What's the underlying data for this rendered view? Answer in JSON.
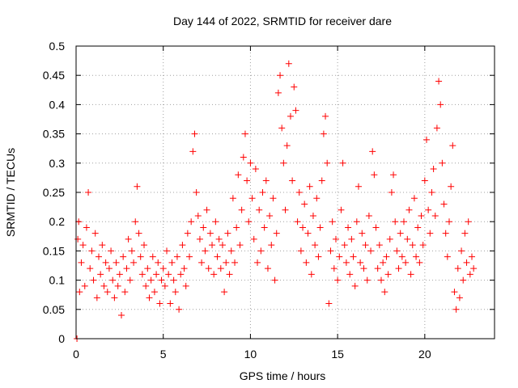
{
  "chart_data": {
    "type": "scatter",
    "title": "Day 144 of 2022, SRMTID for receiver dare",
    "xlabel": "GPS time / hours",
    "ylabel": "SRMTID / TECUs",
    "xlim": [
      0,
      24
    ],
    "ylim": [
      0,
      0.5
    ],
    "x_ticks": [
      "0",
      "5",
      "10",
      "15",
      "20"
    ],
    "y_ticks": [
      "0",
      "0.05",
      "0.1",
      "0.15",
      "0.2",
      "0.25",
      "0.3",
      "0.35",
      "0.4",
      "0.45",
      "0.5"
    ],
    "grid": true,
    "marker": "plus",
    "colors": {
      "series": "#ff0000",
      "grid": "#a0a0a0",
      "axis": "#000000"
    },
    "series": [
      {
        "name": "dare",
        "points": [
          [
            0.05,
            0.0
          ],
          [
            0.1,
            0.17
          ],
          [
            0.15,
            0.2
          ],
          [
            0.2,
            0.08
          ],
          [
            0.3,
            0.13
          ],
          [
            0.4,
            0.16
          ],
          [
            0.5,
            0.09
          ],
          [
            0.6,
            0.19
          ],
          [
            0.7,
            0.25
          ],
          [
            0.8,
            0.12
          ],
          [
            0.9,
            0.15
          ],
          [
            1.0,
            0.1
          ],
          [
            1.1,
            0.18
          ],
          [
            1.2,
            0.07
          ],
          [
            1.3,
            0.14
          ],
          [
            1.4,
            0.11
          ],
          [
            1.5,
            0.16
          ],
          [
            1.6,
            0.09
          ],
          [
            1.7,
            0.13
          ],
          [
            1.8,
            0.08
          ],
          [
            1.9,
            0.12
          ],
          [
            2.0,
            0.15
          ],
          [
            2.1,
            0.1
          ],
          [
            2.2,
            0.07
          ],
          [
            2.3,
            0.13
          ],
          [
            2.4,
            0.09
          ],
          [
            2.5,
            0.11
          ],
          [
            2.6,
            0.04
          ],
          [
            2.7,
            0.14
          ],
          [
            2.8,
            0.08
          ],
          [
            2.9,
            0.12
          ],
          [
            3.0,
            0.17
          ],
          [
            3.1,
            0.1
          ],
          [
            3.2,
            0.15
          ],
          [
            3.3,
            0.13
          ],
          [
            3.4,
            0.2
          ],
          [
            3.5,
            0.26
          ],
          [
            3.6,
            0.18
          ],
          [
            3.7,
            0.14
          ],
          [
            3.8,
            0.11
          ],
          [
            3.9,
            0.16
          ],
          [
            4.0,
            0.09
          ],
          [
            4.1,
            0.12
          ],
          [
            4.2,
            0.07
          ],
          [
            4.3,
            0.1
          ],
          [
            4.4,
            0.14
          ],
          [
            4.5,
            0.08
          ],
          [
            4.6,
            0.11
          ],
          [
            4.7,
            0.13
          ],
          [
            4.8,
            0.06
          ],
          [
            4.9,
            0.1
          ],
          [
            5.0,
            0.12
          ],
          [
            5.1,
            0.09
          ],
          [
            5.2,
            0.15
          ],
          [
            5.3,
            0.11
          ],
          [
            5.4,
            0.06
          ],
          [
            5.5,
            0.13
          ],
          [
            5.6,
            0.1
          ],
          [
            5.7,
            0.08
          ],
          [
            5.8,
            0.14
          ],
          [
            5.9,
            0.05
          ],
          [
            6.0,
            0.11
          ],
          [
            6.1,
            0.16
          ],
          [
            6.2,
            0.12
          ],
          [
            6.3,
            0.09
          ],
          [
            6.4,
            0.18
          ],
          [
            6.5,
            0.14
          ],
          [
            6.6,
            0.2
          ],
          [
            6.7,
            0.32
          ],
          [
            6.8,
            0.35
          ],
          [
            6.9,
            0.25
          ],
          [
            7.0,
            0.21
          ],
          [
            7.1,
            0.17
          ],
          [
            7.2,
            0.13
          ],
          [
            7.3,
            0.19
          ],
          [
            7.4,
            0.15
          ],
          [
            7.5,
            0.22
          ],
          [
            7.6,
            0.12
          ],
          [
            7.7,
            0.18
          ],
          [
            7.8,
            0.16
          ],
          [
            7.9,
            0.11
          ],
          [
            8.0,
            0.2
          ],
          [
            8.1,
            0.14
          ],
          [
            8.2,
            0.17
          ],
          [
            8.3,
            0.12
          ],
          [
            8.4,
            0.16
          ],
          [
            8.5,
            0.08
          ],
          [
            8.6,
            0.13
          ],
          [
            8.7,
            0.18
          ],
          [
            8.8,
            0.11
          ],
          [
            8.9,
            0.15
          ],
          [
            9.0,
            0.24
          ],
          [
            9.1,
            0.13
          ],
          [
            9.2,
            0.19
          ],
          [
            9.3,
            0.28
          ],
          [
            9.4,
            0.16
          ],
          [
            9.5,
            0.22
          ],
          [
            9.6,
            0.31
          ],
          [
            9.7,
            0.35
          ],
          [
            9.8,
            0.27
          ],
          [
            9.9,
            0.2
          ],
          [
            10.0,
            0.3
          ],
          [
            10.1,
            0.24
          ],
          [
            10.2,
            0.17
          ],
          [
            10.3,
            0.29
          ],
          [
            10.4,
            0.13
          ],
          [
            10.5,
            0.22
          ],
          [
            10.6,
            0.15
          ],
          [
            10.7,
            0.25
          ],
          [
            10.8,
            0.19
          ],
          [
            10.9,
            0.27
          ],
          [
            11.0,
            0.12
          ],
          [
            11.1,
            0.21
          ],
          [
            11.2,
            0.16
          ],
          [
            11.3,
            0.24
          ],
          [
            11.4,
            0.1
          ],
          [
            11.5,
            0.18
          ],
          [
            11.6,
            0.42
          ],
          [
            11.7,
            0.45
          ],
          [
            11.8,
            0.36
          ],
          [
            11.9,
            0.3
          ],
          [
            12.0,
            0.22
          ],
          [
            12.1,
            0.33
          ],
          [
            12.2,
            0.47
          ],
          [
            12.3,
            0.38
          ],
          [
            12.4,
            0.27
          ],
          [
            12.5,
            0.43
          ],
          [
            12.6,
            0.39
          ],
          [
            12.7,
            0.2
          ],
          [
            12.8,
            0.25
          ],
          [
            12.9,
            0.15
          ],
          [
            13.0,
            0.19
          ],
          [
            13.1,
            0.23
          ],
          [
            13.2,
            0.13
          ],
          [
            13.3,
            0.18
          ],
          [
            13.4,
            0.26
          ],
          [
            13.5,
            0.11
          ],
          [
            13.6,
            0.21
          ],
          [
            13.7,
            0.16
          ],
          [
            13.8,
            0.24
          ],
          [
            13.9,
            0.14
          ],
          [
            14.0,
            0.19
          ],
          [
            14.1,
            0.27
          ],
          [
            14.2,
            0.35
          ],
          [
            14.3,
            0.38
          ],
          [
            14.4,
            0.3
          ],
          [
            14.5,
            0.06
          ],
          [
            14.6,
            0.15
          ],
          [
            14.7,
            0.2
          ],
          [
            14.8,
            0.12
          ],
          [
            14.9,
            0.17
          ],
          [
            15.0,
            0.1
          ],
          [
            15.1,
            0.14
          ],
          [
            15.2,
            0.22
          ],
          [
            15.3,
            0.3
          ],
          [
            15.4,
            0.16
          ],
          [
            15.5,
            0.13
          ],
          [
            15.6,
            0.19
          ],
          [
            15.7,
            0.11
          ],
          [
            15.8,
            0.17
          ],
          [
            15.9,
            0.14
          ],
          [
            16.0,
            0.09
          ],
          [
            16.1,
            0.2
          ],
          [
            16.2,
            0.26
          ],
          [
            16.3,
            0.13
          ],
          [
            16.4,
            0.18
          ],
          [
            16.5,
            0.12
          ],
          [
            16.6,
            0.16
          ],
          [
            16.7,
            0.1
          ],
          [
            16.8,
            0.21
          ],
          [
            16.9,
            0.15
          ],
          [
            17.0,
            0.32
          ],
          [
            17.1,
            0.28
          ],
          [
            17.2,
            0.19
          ],
          [
            17.3,
            0.12
          ],
          [
            17.4,
            0.16
          ],
          [
            17.5,
            0.1
          ],
          [
            17.6,
            0.13
          ],
          [
            17.7,
            0.08
          ],
          [
            17.8,
            0.14
          ],
          [
            17.9,
            0.11
          ],
          [
            18.0,
            0.17
          ],
          [
            18.1,
            0.25
          ],
          [
            18.2,
            0.28
          ],
          [
            18.3,
            0.2
          ],
          [
            18.4,
            0.15
          ],
          [
            18.5,
            0.12
          ],
          [
            18.6,
            0.18
          ],
          [
            18.7,
            0.14
          ],
          [
            18.8,
            0.2
          ],
          [
            18.9,
            0.13
          ],
          [
            19.0,
            0.17
          ],
          [
            19.1,
            0.22
          ],
          [
            19.2,
            0.11
          ],
          [
            19.3,
            0.16
          ],
          [
            19.4,
            0.24
          ],
          [
            19.5,
            0.14
          ],
          [
            19.6,
            0.19
          ],
          [
            19.7,
            0.13
          ],
          [
            19.8,
            0.21
          ],
          [
            19.9,
            0.16
          ],
          [
            20.0,
            0.27
          ],
          [
            20.1,
            0.34
          ],
          [
            20.2,
            0.22
          ],
          [
            20.3,
            0.18
          ],
          [
            20.4,
            0.25
          ],
          [
            20.5,
            0.29
          ],
          [
            20.6,
            0.21
          ],
          [
            20.7,
            0.36
          ],
          [
            20.8,
            0.44
          ],
          [
            20.9,
            0.4
          ],
          [
            21.0,
            0.3
          ],
          [
            21.1,
            0.23
          ],
          [
            21.2,
            0.18
          ],
          [
            21.3,
            0.14
          ],
          [
            21.4,
            0.2
          ],
          [
            21.5,
            0.26
          ],
          [
            21.6,
            0.33
          ],
          [
            21.7,
            0.08
          ],
          [
            21.8,
            0.05
          ],
          [
            21.9,
            0.12
          ],
          [
            22.0,
            0.07
          ],
          [
            22.1,
            0.15
          ],
          [
            22.2,
            0.1
          ],
          [
            22.3,
            0.18
          ],
          [
            22.4,
            0.13
          ],
          [
            22.5,
            0.2
          ],
          [
            22.6,
            0.11
          ],
          [
            22.7,
            0.14
          ],
          [
            22.8,
            0.12
          ]
        ]
      }
    ]
  }
}
